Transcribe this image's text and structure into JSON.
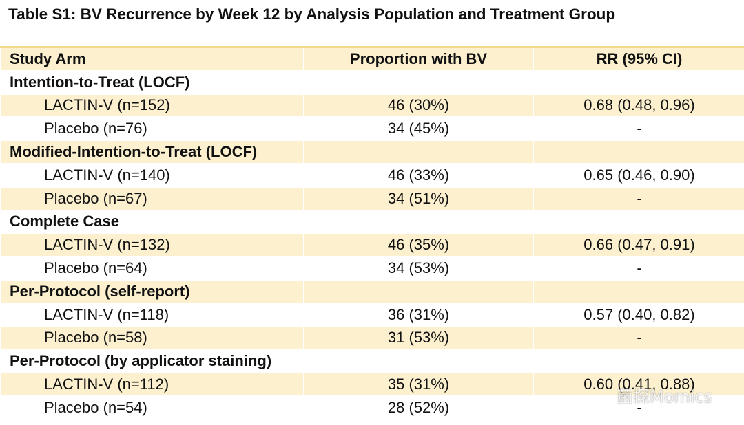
{
  "title": "Table S1: BV Recurrence by Week 12 by Analysis Population and Treatment Group",
  "table": {
    "columns": [
      "Study Arm",
      "Proportion with BV",
      "RR (95% CI)"
    ],
    "groups": [
      {
        "label": "Intention-to-Treat (LOCF)",
        "rows": [
          [
            "LACTIN-V (n=152)",
            "46 (30%)",
            "0.68 (0.48, 0.96)"
          ],
          [
            "Placebo (n=76)",
            "34 (45%)",
            "-"
          ]
        ]
      },
      {
        "label": "Modified-Intention-to-Treat (LOCF)",
        "rows": [
          [
            "LACTIN-V (n=140)",
            "46 (33%)",
            "0.65 (0.46, 0.90)"
          ],
          [
            "Placebo (n=67)",
            "34 (51%)",
            "-"
          ]
        ]
      },
      {
        "label": "Complete Case",
        "rows": [
          [
            "LACTIN-V (n=132)",
            "46 (35%)",
            "0.66 (0.47, 0.91)"
          ],
          [
            "Placebo (n=64)",
            "34 (53%)",
            "-"
          ]
        ]
      },
      {
        "label": "Per-Protocol (self-report)",
        "rows": [
          [
            "LACTIN-V (n=118)",
            "36 (31%)",
            "0.57 (0.40, 0.82)"
          ],
          [
            "Placebo (n=58)",
            "31 (53%)",
            "-"
          ]
        ]
      },
      {
        "label": "Per-Protocol (by applicator staining)",
        "rows": [
          [
            "LACTIN-V (n=112)",
            "35 (31%)",
            "0.60 (0.41, 0.88)"
          ],
          [
            "Placebo (n=54)",
            "28 (52%)",
            "-"
          ]
        ]
      }
    ]
  },
  "watermark": "菌探Momics"
}
